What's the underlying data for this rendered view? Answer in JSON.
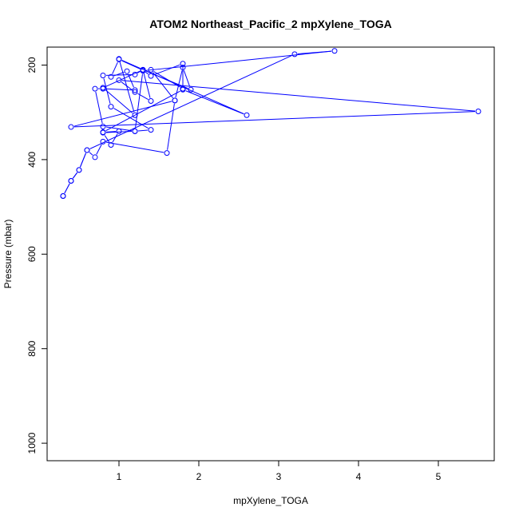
{
  "chart_data": {
    "type": "line",
    "title": "ATOM2 Northeast_Pacific_2 mpXylene_TOGA",
    "xlabel": "mpXylene_TOGA",
    "ylabel": "Pressure (mbar)",
    "xlim": [
      0.1,
      5.7
    ],
    "ylim": [
      1037,
      162
    ],
    "y_reversed": true,
    "xticks": [
      1,
      2,
      3,
      4,
      5
    ],
    "yticks": [
      200,
      400,
      600,
      800,
      1000
    ],
    "xtick_labels": [
      "1",
      "2",
      "3",
      "4",
      "5"
    ],
    "ytick_labels": [
      "200",
      "400",
      "600",
      "800",
      "1000"
    ],
    "series_color": "#0000ff",
    "grid": false,
    "series": [
      {
        "x": [
          0.3,
          0.4,
          0.5,
          0.6,
          0.7,
          0.8,
          1.6,
          1.7,
          1.8,
          1.9,
          1.3,
          1.2,
          0.8,
          0.9,
          1.4,
          1.2,
          0.8,
          0.7,
          0.8,
          1.2,
          1.1,
          0.9,
          1.0,
          1.3,
          1.4,
          1.8,
          1.8,
          1.4,
          1.7,
          0.4,
          5.5,
          1.0,
          1.2,
          1.4,
          1.3,
          0.8,
          1.2,
          1.0,
          2.6,
          1.8,
          0.8,
          1.0,
          0.9,
          0.8,
          1.2,
          1.3,
          3.7,
          3.2,
          0.6,
          0.5,
          0.4,
          0.3
        ],
        "y": [
          477,
          445,
          422,
          380,
          395,
          362,
          386,
          275,
          205,
          252,
          210,
          220,
          222,
          288,
          337,
          340,
          330,
          250,
          250,
          253,
          213,
          225,
          188,
          211,
          223,
          197,
          250,
          210,
          275,
          331,
          298,
          232,
          257,
          276,
          210,
          248,
          306,
          187,
          306,
          252,
          342,
          340,
          369,
          343,
          340,
          212,
          170,
          177,
          380,
          422,
          445,
          477
        ]
      }
    ]
  }
}
